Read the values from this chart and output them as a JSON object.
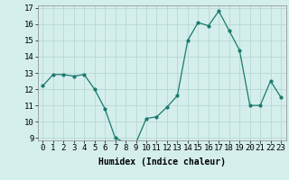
{
  "x": [
    0,
    1,
    2,
    3,
    4,
    5,
    6,
    7,
    8,
    9,
    10,
    11,
    12,
    13,
    14,
    15,
    16,
    17,
    18,
    19,
    20,
    21,
    22,
    23
  ],
  "y": [
    12.2,
    12.9,
    12.9,
    12.8,
    12.9,
    12.0,
    10.8,
    9.0,
    8.7,
    8.7,
    10.2,
    10.3,
    10.9,
    11.6,
    15.0,
    16.1,
    15.9,
    16.8,
    15.6,
    14.4,
    11.0,
    11.0,
    12.5,
    11.5
  ],
  "xlabel": "Humidex (Indice chaleur)",
  "ylim": [
    9,
    17
  ],
  "xlim_min": -0.5,
  "xlim_max": 23.5,
  "yticks": [
    9,
    10,
    11,
    12,
    13,
    14,
    15,
    16,
    17
  ],
  "xticks": [
    0,
    1,
    2,
    3,
    4,
    5,
    6,
    7,
    8,
    9,
    10,
    11,
    12,
    13,
    14,
    15,
    16,
    17,
    18,
    19,
    20,
    21,
    22,
    23
  ],
  "line_color": "#1a7a6e",
  "marker_color": "#1a7a6e",
  "bg_color": "#d4eeec",
  "grid_color": "#b8d8d4",
  "axis_label_fontsize": 7,
  "tick_fontsize": 6.5
}
